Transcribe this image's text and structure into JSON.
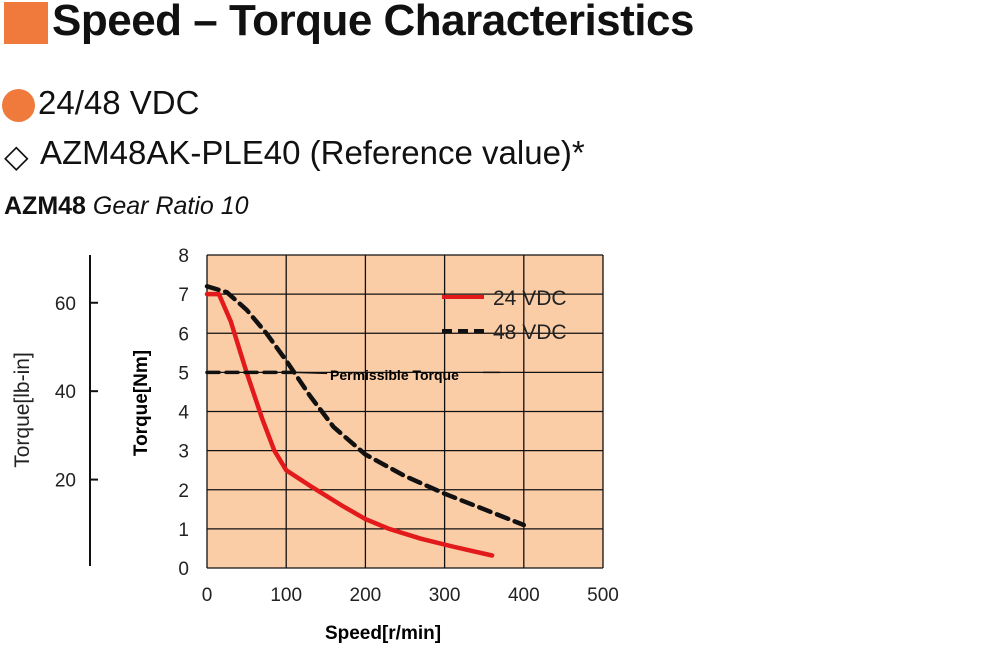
{
  "header": {
    "title": "Speed – Torque Characteristics",
    "voltage": "24/48 VDC",
    "model_symbol": "◇",
    "model": "AZM48AK-PLE40 (Reference value)*",
    "series_bold": "AZM48",
    "series_italic": "Gear Ratio 10"
  },
  "colors": {
    "accent": "#ef7a3c",
    "plot_background": "#fbcda7",
    "series_24": "#e31a1c",
    "series_48": "#111111"
  },
  "chart_data": {
    "type": "line",
    "xlabel": "Speed[r/min]",
    "ylabel": "Torque[Nm]",
    "ylabel_secondary": "Torque[lb-in]",
    "xlim": [
      0,
      500
    ],
    "ylim": [
      0,
      8
    ],
    "xticks": [
      0,
      100,
      200,
      300,
      400,
      500
    ],
    "yticks": [
      0,
      1,
      2,
      3,
      4,
      5,
      6,
      7,
      8
    ],
    "secondary_yticks": [
      20,
      40,
      60
    ],
    "grid": true,
    "legend_position": "top-right",
    "series": [
      {
        "name": "24 VDC",
        "style": "solid",
        "x": [
          0,
          15,
          30,
          50,
          70,
          85,
          100,
          130,
          170,
          200,
          230,
          270,
          310,
          360
        ],
        "y": [
          7.0,
          7.0,
          6.3,
          5.0,
          3.8,
          3.0,
          2.5,
          2.1,
          1.6,
          1.25,
          1.0,
          0.75,
          0.55,
          0.32
        ]
      },
      {
        "name": "48 VDC",
        "style": "dashed",
        "x": [
          0,
          25,
          50,
          75,
          100,
          130,
          160,
          200,
          250,
          300,
          350,
          400
        ],
        "y": [
          7.2,
          7.05,
          6.6,
          6.0,
          5.3,
          4.4,
          3.6,
          2.9,
          2.35,
          1.9,
          1.5,
          1.1
        ]
      },
      {
        "name": "Permissible Torque",
        "style": "dashed",
        "x": [
          0,
          110
        ],
        "y": [
          5,
          5
        ]
      }
    ],
    "annotations": [
      {
        "text": "Permissible Torque",
        "x": 110,
        "y": 5
      }
    ]
  }
}
